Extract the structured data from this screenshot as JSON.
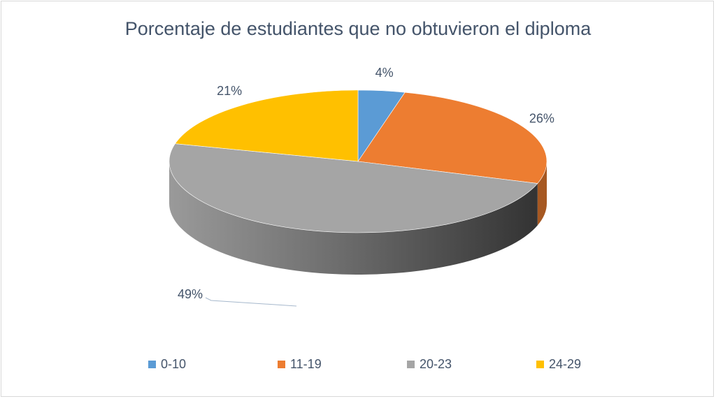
{
  "chart_data": {
    "type": "pie",
    "title": "Porcentaje de estudiantes que no obtuvieron el diploma",
    "three_d": true,
    "legend_position": "bottom",
    "categories": [
      "0-10",
      "11-19",
      "20-23",
      "24-29"
    ],
    "values": [
      4,
      26,
      49,
      21
    ],
    "labels": [
      "4%",
      "26%",
      "49%",
      "21%"
    ],
    "colors": [
      "#5b9bd5",
      "#ed7d31",
      "#a5a5a5",
      "#ffc000"
    ]
  }
}
